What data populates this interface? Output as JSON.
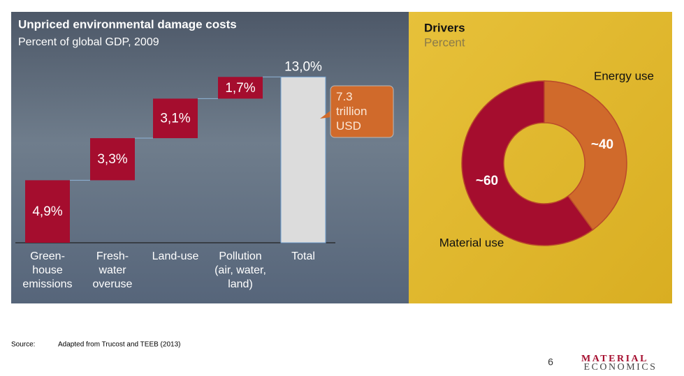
{
  "chart_data": [
    {
      "type": "waterfall",
      "title": "Unpriced environmental damage costs",
      "subtitle": "Percent of global GDP, 2009",
      "categories": [
        "Green-\nhouse\nemissions",
        "Fresh-\nwater\noveruse",
        "Land-use",
        "Pollution\n(air, water,\nland)",
        "Total"
      ],
      "values": [
        4.9,
        3.3,
        3.1,
        1.7,
        13.0
      ],
      "value_labels": [
        "4,9%",
        "3,3%",
        "3,1%",
        "1,7%",
        "13,0%"
      ],
      "color": "#a50d2e",
      "total_color": "#dcdcdc",
      "ylim": [
        0,
        14
      ],
      "annotation": "7.3\ntrillion\nUSD"
    },
    {
      "type": "pie",
      "title": "Drivers",
      "subtitle": "Percent",
      "categories": [
        "Energy use",
        "Material use"
      ],
      "values": [
        40,
        60
      ],
      "value_labels": [
        "~40",
        "~60"
      ],
      "colors": [
        "#d06a2b",
        "#a50d2e"
      ]
    }
  ],
  "footer": {
    "source_label": "Source:",
    "source": "Adapted from Trucost and TEEB (2013)",
    "page": "6",
    "logo_top": "MATERIAL",
    "logo_bottom": "ECONOMICS"
  }
}
